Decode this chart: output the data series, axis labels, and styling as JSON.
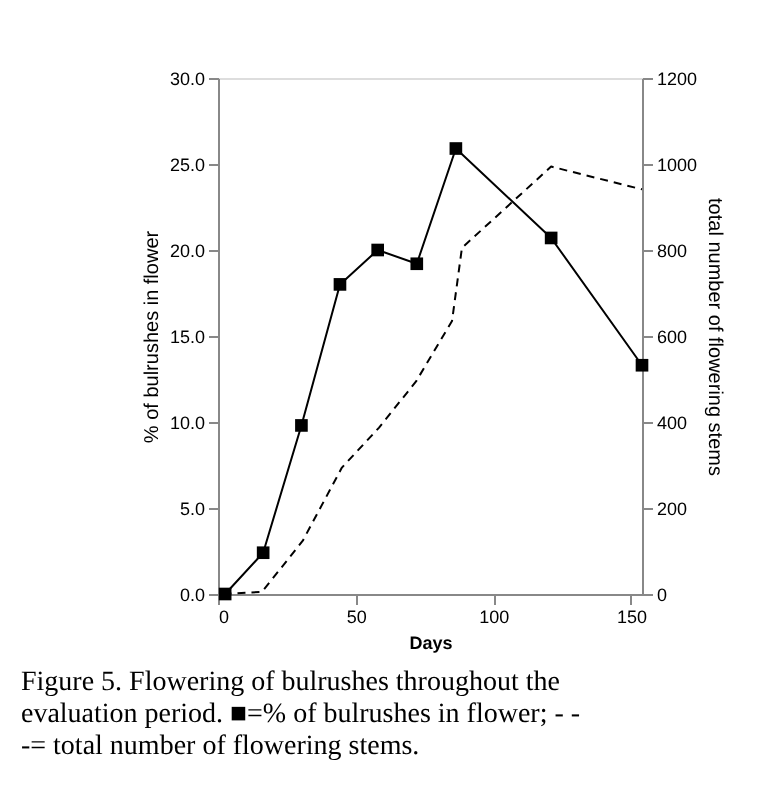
{
  "chart_data": {
    "type": "line",
    "xlabel": "Days",
    "ylabel": "% of bulrushes in flower",
    "y2label": "total number of flowering stems",
    "series": [
      {
        "color": "#000000",
        "marker": "square",
        "line_style": "solid",
        "x": [
          2.6,
          16.4,
          30.3,
          44.3,
          58,
          72.2,
          86.4,
          121,
          154
        ],
        "values": [
          0,
          2.4,
          9.8,
          18.0,
          20.0,
          19.2,
          25.9,
          20.7,
          13.3
        ]
      },
      {
        "color": "#000000",
        "marker": "none",
        "line_style": "dashed",
        "axis": "y2",
        "x": [
          2,
          16,
          30.8,
          45,
          58.5,
          72,
          85,
          88.6,
          121,
          154
        ],
        "values": [
          0,
          5,
          124,
          294,
          387,
          495,
          635,
          805,
          994,
          941
        ]
      }
    ],
    "xlim": [
      0,
      154
    ],
    "xticks": [
      0,
      50,
      100,
      150
    ],
    "ylim": [
      0,
      30
    ],
    "yticks": [
      {
        "value": 0,
        "label": "0.0"
      },
      {
        "value": 5,
        "label": "5.0"
      },
      {
        "value": 10,
        "label": "10.0"
      },
      {
        "value": 15,
        "label": "15.0"
      },
      {
        "value": 20,
        "label": "20.0"
      },
      {
        "value": 25,
        "label": "25.0"
      },
      {
        "value": 30,
        "label": "30.0"
      }
    ],
    "y2lim": [
      0,
      1200
    ],
    "y2ticks": [
      0,
      200,
      400,
      600,
      800,
      1000,
      1200
    ],
    "grid": false,
    "annotations": [
      "Figure 5. Flowering of bulrushes throughout the evaluation period. ■=% of bulrushes in flower; - - -= total number of flowering stems."
    ]
  }
}
